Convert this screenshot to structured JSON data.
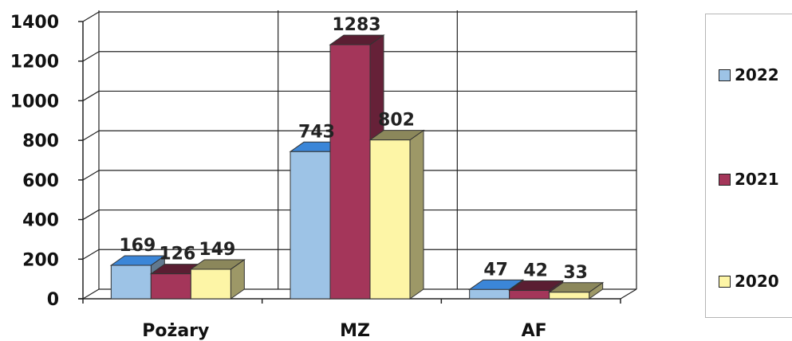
{
  "chart_data": {
    "type": "bar",
    "title": "",
    "xlabel": "",
    "ylabel": "",
    "categories": [
      "Pożary",
      "MZ",
      "AF"
    ],
    "series": [
      {
        "name": "2022",
        "values": [
          169,
          743,
          47
        ],
        "color": "#9dc3e6"
      },
      {
        "name": "2021",
        "values": [
          126,
          1283,
          42
        ],
        "color": "#a4365a"
      },
      {
        "name": "2020",
        "values": [
          149,
          802,
          33
        ],
        "color": "#fdf5a6"
      }
    ],
    "ylim": [
      0,
      1400
    ],
    "yticks": [
      0,
      200,
      400,
      600,
      800,
      1000,
      1200,
      1400
    ],
    "grid": true,
    "legend_position": "right",
    "style": "3d-clustered-column"
  }
}
